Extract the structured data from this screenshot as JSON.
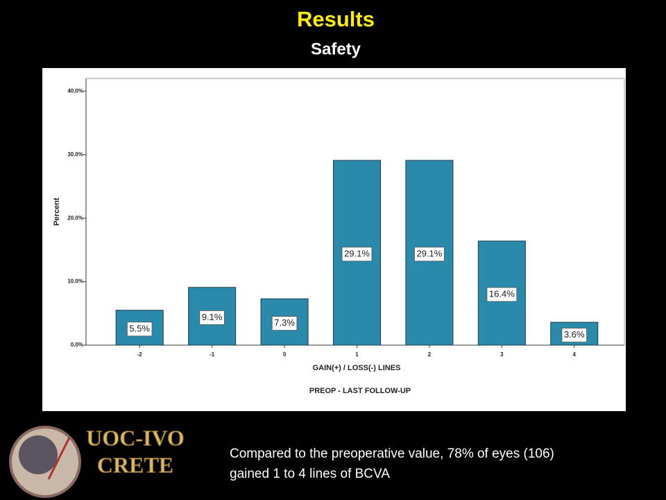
{
  "title": "Results",
  "subtitle": "Safety",
  "logo": {
    "line1": "UOC-IVO",
    "line2": "CRETE"
  },
  "caption": [
    "Compared to the preoperative value, 78% of eyes (106)",
    "gained 1 to 4 lines of BCVA"
  ],
  "chart_data": {
    "type": "bar",
    "x_label": "GAIN(+) / LOSS(-) LINES",
    "x_label_2": "PREOP - LAST FOLLOW-UP",
    "y_label": "Percent",
    "categories": [
      "-2",
      "-1",
      "0",
      "1",
      "2",
      "3",
      "4"
    ],
    "values": [
      5.5,
      9.1,
      7.3,
      29.1,
      29.1,
      16.4,
      3.6
    ],
    "value_labels": [
      "5.5%",
      "9.1%",
      "7.3%",
      "29.1%",
      "29.1%",
      "16.4%",
      "3.6%"
    ],
    "color": "#2a8aab",
    "ylim": [
      0,
      42
    ],
    "yticks": [
      {
        "value": 0,
        "label": "0.0%"
      },
      {
        "value": 10,
        "label": "10.0%"
      },
      {
        "value": 20,
        "label": "20.0%"
      },
      {
        "value": 30,
        "label": "30.0%"
      },
      {
        "value": 40,
        "label": "40.0%"
      }
    ],
    "grid": false
  }
}
